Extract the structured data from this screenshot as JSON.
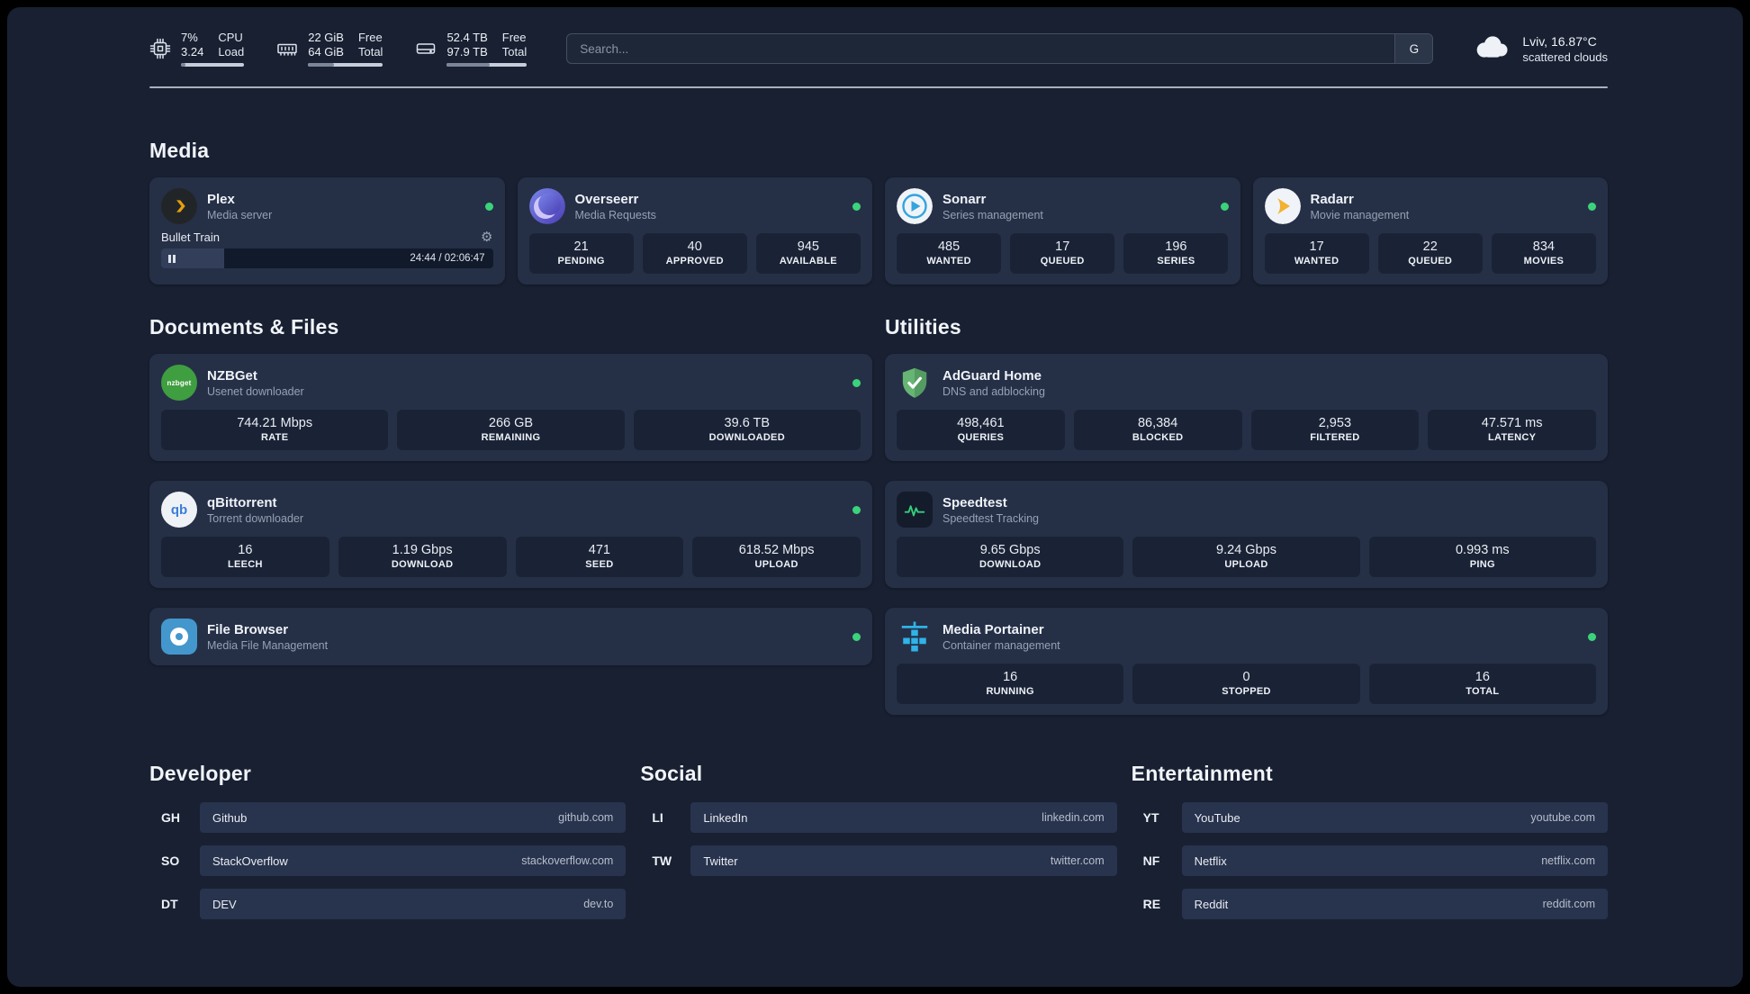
{
  "colors": {
    "status_green": "#3bd37a",
    "plex_gold": "#e5a00d",
    "background": "#182032",
    "card": "#253047"
  },
  "topbar": {
    "cpu": {
      "value": "7%",
      "secondary": "3.24",
      "label_top": "CPU",
      "label_bottom": "Load",
      "bar_percent": "7"
    },
    "ram": {
      "value": "22 GiB",
      "secondary": "64 GiB",
      "label_top": "Free",
      "label_bottom": "Total",
      "bar_percent": "34"
    },
    "disk": {
      "value": "52.4 TB",
      "secondary": "97.9 TB",
      "label_top": "Free",
      "label_bottom": "Total",
      "bar_percent": "54"
    },
    "search": {
      "placeholder": "Search...",
      "engine_label": "G"
    },
    "weather": {
      "location": "Lviv, 16.87°C",
      "condition": "scattered clouds"
    }
  },
  "media": {
    "title": "Media",
    "cards": [
      {
        "name": "Plex",
        "subtitle": "Media server",
        "player": {
          "track": "Bullet Train",
          "time": "24:44 / 02:06:47",
          "progress_percent": "19"
        }
      },
      {
        "name": "Overseerr",
        "subtitle": "Media Requests",
        "stats": [
          {
            "value": "21",
            "label": "PENDING"
          },
          {
            "value": "40",
            "label": "APPROVED"
          },
          {
            "value": "945",
            "label": "AVAILABLE"
          }
        ]
      },
      {
        "name": "Sonarr",
        "subtitle": "Series management",
        "stats": [
          {
            "value": "485",
            "label": "WANTED"
          },
          {
            "value": "17",
            "label": "QUEUED"
          },
          {
            "value": "196",
            "label": "SERIES"
          }
        ]
      },
      {
        "name": "Radarr",
        "subtitle": "Movie management",
        "stats": [
          {
            "value": "17",
            "label": "WANTED"
          },
          {
            "value": "22",
            "label": "QUEUED"
          },
          {
            "value": "834",
            "label": "MOVIES"
          }
        ]
      }
    ]
  },
  "documents": {
    "title": "Documents & Files",
    "cards": [
      {
        "name": "NZBGet",
        "subtitle": "Usenet downloader",
        "icon_text": "nzbget",
        "stats": [
          {
            "value": "744.21 Mbps",
            "label": "RATE"
          },
          {
            "value": "266 GB",
            "label": "REMAINING"
          },
          {
            "value": "39.6 TB",
            "label": "DOWNLOADED"
          }
        ]
      },
      {
        "name": "qBittorrent",
        "subtitle": "Torrent downloader",
        "icon_text": "qb",
        "stats": [
          {
            "value": "16",
            "label": "LEECH"
          },
          {
            "value": "1.19 Gbps",
            "label": "DOWNLOAD"
          },
          {
            "value": "471",
            "label": "SEED"
          },
          {
            "value": "618.52 Mbps",
            "label": "UPLOAD"
          }
        ]
      },
      {
        "name": "File Browser",
        "subtitle": "Media File Management"
      }
    ]
  },
  "utilities": {
    "title": "Utilities",
    "cards": [
      {
        "name": "AdGuard Home",
        "subtitle": "DNS and adblocking",
        "stats": [
          {
            "value": "498,461",
            "label": "QUERIES"
          },
          {
            "value": "86,384",
            "label": "BLOCKED"
          },
          {
            "value": "2,953",
            "label": "FILTERED"
          },
          {
            "value": "47.571 ms",
            "label": "LATENCY"
          }
        ]
      },
      {
        "name": "Speedtest",
        "subtitle": "Speedtest Tracking",
        "stats": [
          {
            "value": "9.65 Gbps",
            "label": "DOWNLOAD"
          },
          {
            "value": "9.24 Gbps",
            "label": "UPLOAD"
          },
          {
            "value": "0.993 ms",
            "label": "PING"
          }
        ]
      },
      {
        "name": "Media Portainer",
        "subtitle": "Container management",
        "stats": [
          {
            "value": "16",
            "label": "RUNNING"
          },
          {
            "value": "0",
            "label": "STOPPED"
          },
          {
            "value": "16",
            "label": "TOTAL"
          }
        ]
      }
    ]
  },
  "bookmarks": {
    "groups": [
      {
        "title": "Developer",
        "items": [
          {
            "abbr": "GH",
            "name": "Github",
            "url": "github.com"
          },
          {
            "abbr": "SO",
            "name": "StackOverflow",
            "url": "stackoverflow.com"
          },
          {
            "abbr": "DT",
            "name": "DEV",
            "url": "dev.to"
          }
        ]
      },
      {
        "title": "Social",
        "items": [
          {
            "abbr": "LI",
            "name": "LinkedIn",
            "url": "linkedin.com"
          },
          {
            "abbr": "TW",
            "name": "Twitter",
            "url": "twitter.com"
          }
        ]
      },
      {
        "title": "Entertainment",
        "items": [
          {
            "abbr": "YT",
            "name": "YouTube",
            "url": "youtube.com"
          },
          {
            "abbr": "NF",
            "name": "Netflix",
            "url": "netflix.com"
          },
          {
            "abbr": "RE",
            "name": "Reddit",
            "url": "reddit.com"
          }
        ]
      }
    ]
  }
}
